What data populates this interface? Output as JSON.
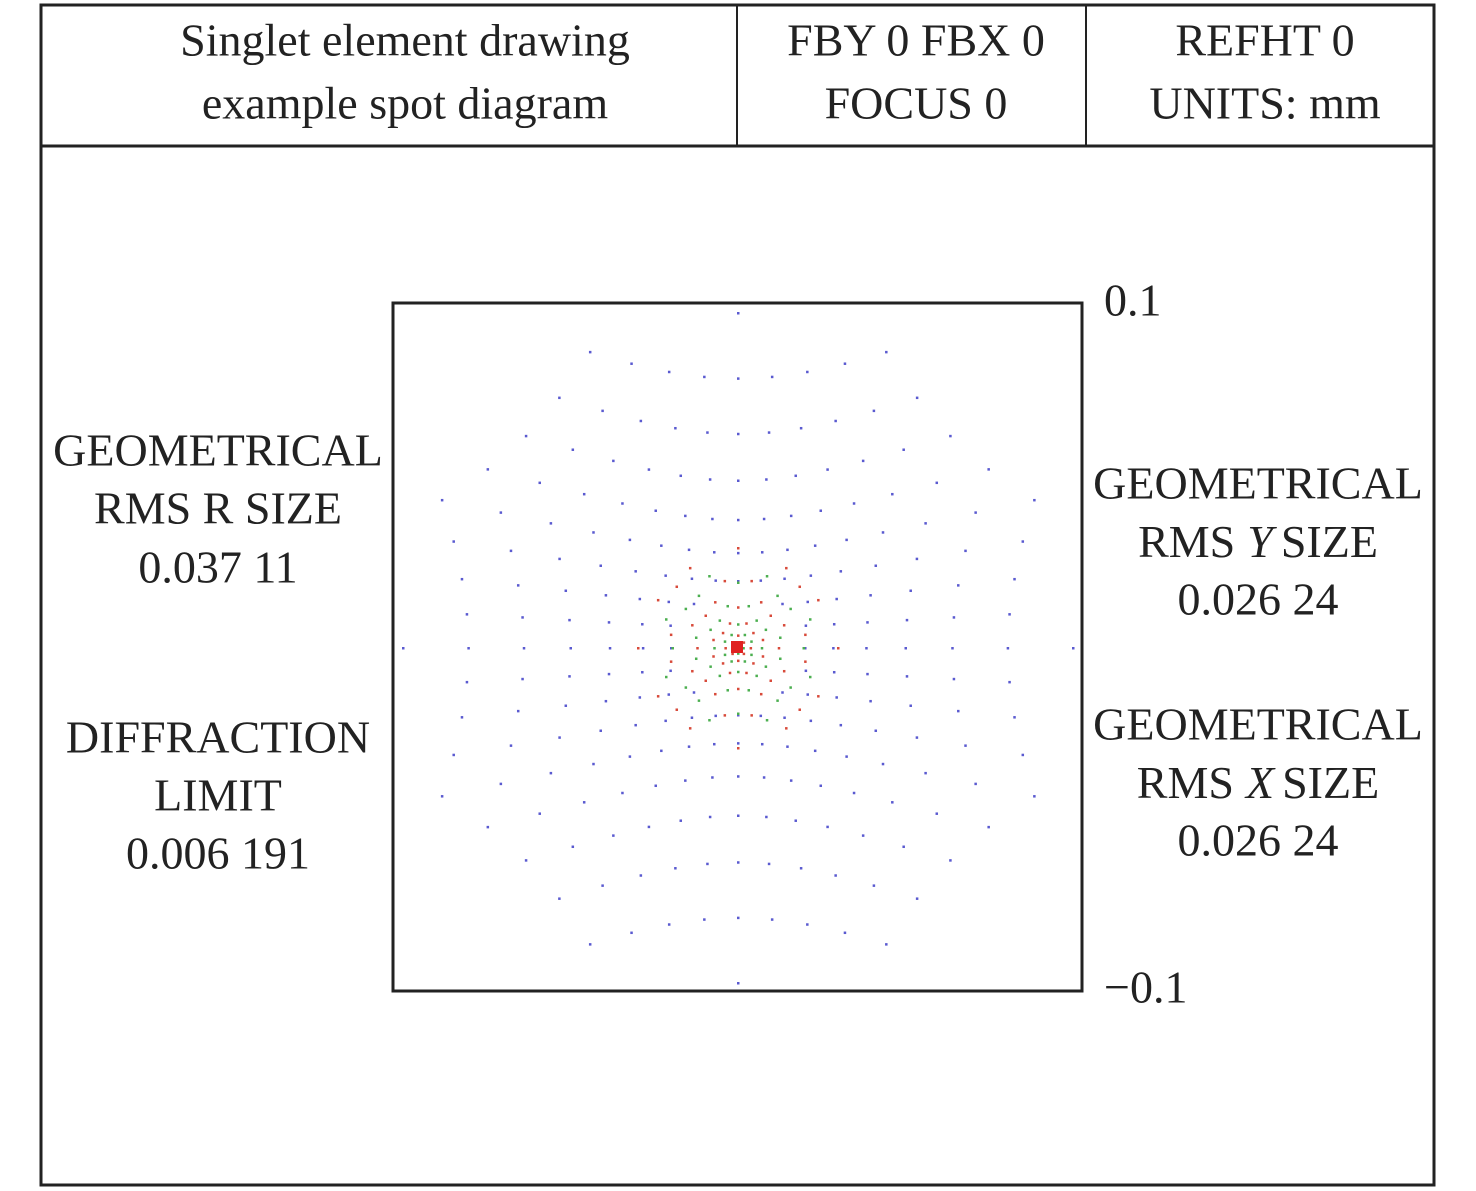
{
  "header": {
    "title": [
      "Singlet element drawing",
      "example spot diagram"
    ],
    "field": [
      "FBY 0 FBX 0",
      "FOCUS 0"
    ],
    "reference": [
      "REFHT 0",
      "UNITS: mm"
    ]
  },
  "plot": {
    "top_label": "0.1",
    "bottom_label": "−0.1"
  },
  "left": [
    {
      "lines": [
        "GEOMETRICAL",
        "RMS R SIZE",
        "0.037 11"
      ]
    },
    {
      "lines": [
        "DIFFRACTION",
        "LIMIT",
        "0.006 191"
      ]
    }
  ],
  "right": [
    {
      "heading": "GEOMETRICAL",
      "prefix": "RMS",
      "axis": "Y",
      "suffix": "SIZE",
      "value": "0.026 24"
    },
    {
      "heading": "GEOMETRICAL",
      "prefix": "RMS",
      "axis": "X",
      "suffix": "SIZE",
      "value": "0.026 24"
    }
  ]
}
